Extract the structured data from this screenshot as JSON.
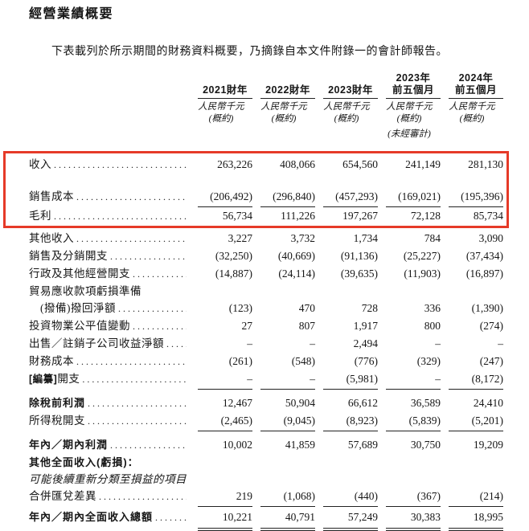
{
  "page": {
    "title": "經營業績概要",
    "intro": "下表載列於所示期間的財務資料概要，乃摘錄自本文件附錄一的會計師報告。"
  },
  "highlight": {
    "color": "#e63a28",
    "covers_rows": [
      "收入",
      "銷售成本",
      "毛利"
    ]
  },
  "table": {
    "columns": [
      {
        "years": [
          "2021財年"
        ],
        "unit": "人民幣千元",
        "note": "(概約)"
      },
      {
        "years": [
          "2022財年"
        ],
        "unit": "人民幣千元",
        "note": "(概約)"
      },
      {
        "years": [
          "2023財年"
        ],
        "unit": "人民幣千元",
        "note": "(概約)"
      },
      {
        "years": [
          "2023年",
          "前五個月"
        ],
        "unit": "人民幣千元",
        "note": "(概約)",
        "note2": "(未經審計)"
      },
      {
        "years": [
          "2024年",
          "前五個月"
        ],
        "unit": "人民幣千元",
        "note": "(概約)"
      }
    ],
    "rows": [
      {
        "label": "收入",
        "leaders": true,
        "values": [
          "263,226",
          "408,066",
          "654,560",
          "241,149",
          "281,130"
        ]
      },
      {
        "label": "銷售成本",
        "leaders": true,
        "gap": 18,
        "rule": "single",
        "values": [
          "(206,492)",
          "(296,840)",
          "(457,293)",
          "(169,021)",
          "(195,396)"
        ]
      },
      {
        "label": "毛利",
        "leaders": true,
        "values": [
          "56,734",
          "111,226",
          "197,267",
          "72,128",
          "85,734"
        ]
      },
      {
        "label": "其他收入",
        "leaders": true,
        "gap": 6,
        "values": [
          "3,227",
          "3,732",
          "1,734",
          "784",
          "3,090"
        ]
      },
      {
        "label": "銷售及分銷開支",
        "leaders": true,
        "values": [
          "(32,250)",
          "(40,669)",
          "(91,136)",
          "(25,227)",
          "(37,434)"
        ]
      },
      {
        "label": "行政及其他經營開支",
        "leaders": true,
        "values": [
          "(14,887)",
          "(24,114)",
          "(39,635)",
          "(11,903)",
          "(16,897)"
        ]
      },
      {
        "label": "貿易應收款項虧損準備",
        "leaders": false,
        "values": null
      },
      {
        "label": "(撥備)撥回淨額",
        "indent": true,
        "leaders": true,
        "values": [
          "(123)",
          "470",
          "728",
          "336",
          "(1,390)"
        ]
      },
      {
        "label": "投資物業公平值變動",
        "leaders": true,
        "values": [
          "27",
          "807",
          "1,917",
          "800",
          "(274)"
        ]
      },
      {
        "label": "出售／註銷子公司收益淨額",
        "leaders": true,
        "values": [
          "–",
          "–",
          "2,494",
          "–",
          "–"
        ]
      },
      {
        "label": "財務成本",
        "leaders": true,
        "values": [
          "(261)",
          "(548)",
          "(776)",
          "(329)",
          "(247)"
        ]
      },
      {
        "label": "開支",
        "bold_prefix": "[編纂]",
        "leaders": true,
        "rule": "single",
        "values": [
          "–",
          "–",
          "(5,981)",
          "–",
          "(8,172)"
        ]
      },
      {
        "label": "除稅前利潤",
        "bold": true,
        "leaders": true,
        "gap": 6,
        "values": [
          "12,467",
          "50,904",
          "66,612",
          "36,589",
          "24,410"
        ]
      },
      {
        "label": "所得稅開支",
        "leaders": true,
        "rule": "single",
        "values": [
          "(2,465)",
          "(9,045)",
          "(8,923)",
          "(5,839)",
          "(5,201)"
        ]
      },
      {
        "label": "年內／期內利潤",
        "bold": true,
        "leaders": true,
        "gap": 6,
        "values": [
          "10,002",
          "41,859",
          "57,689",
          "30,750",
          "19,209"
        ]
      },
      {
        "label": "其他全面收入(虧損)：",
        "bold": true,
        "leaders": false,
        "values": null
      },
      {
        "label": "可能後續重新分類至損益的項目",
        "italic": true,
        "leaders": false,
        "values": null
      },
      {
        "label": "合併匯兌差異",
        "leaders": true,
        "rule": "single",
        "values": [
          "219",
          "(1,068)",
          "(440)",
          "(367)",
          "(214)"
        ]
      },
      {
        "label": "年內／期內全面收入總額",
        "bold": true,
        "leaders": true,
        "gap": 2,
        "rule": "double",
        "values": [
          "10,221",
          "40,791",
          "57,249",
          "30,383",
          "18,995"
        ]
      }
    ]
  }
}
